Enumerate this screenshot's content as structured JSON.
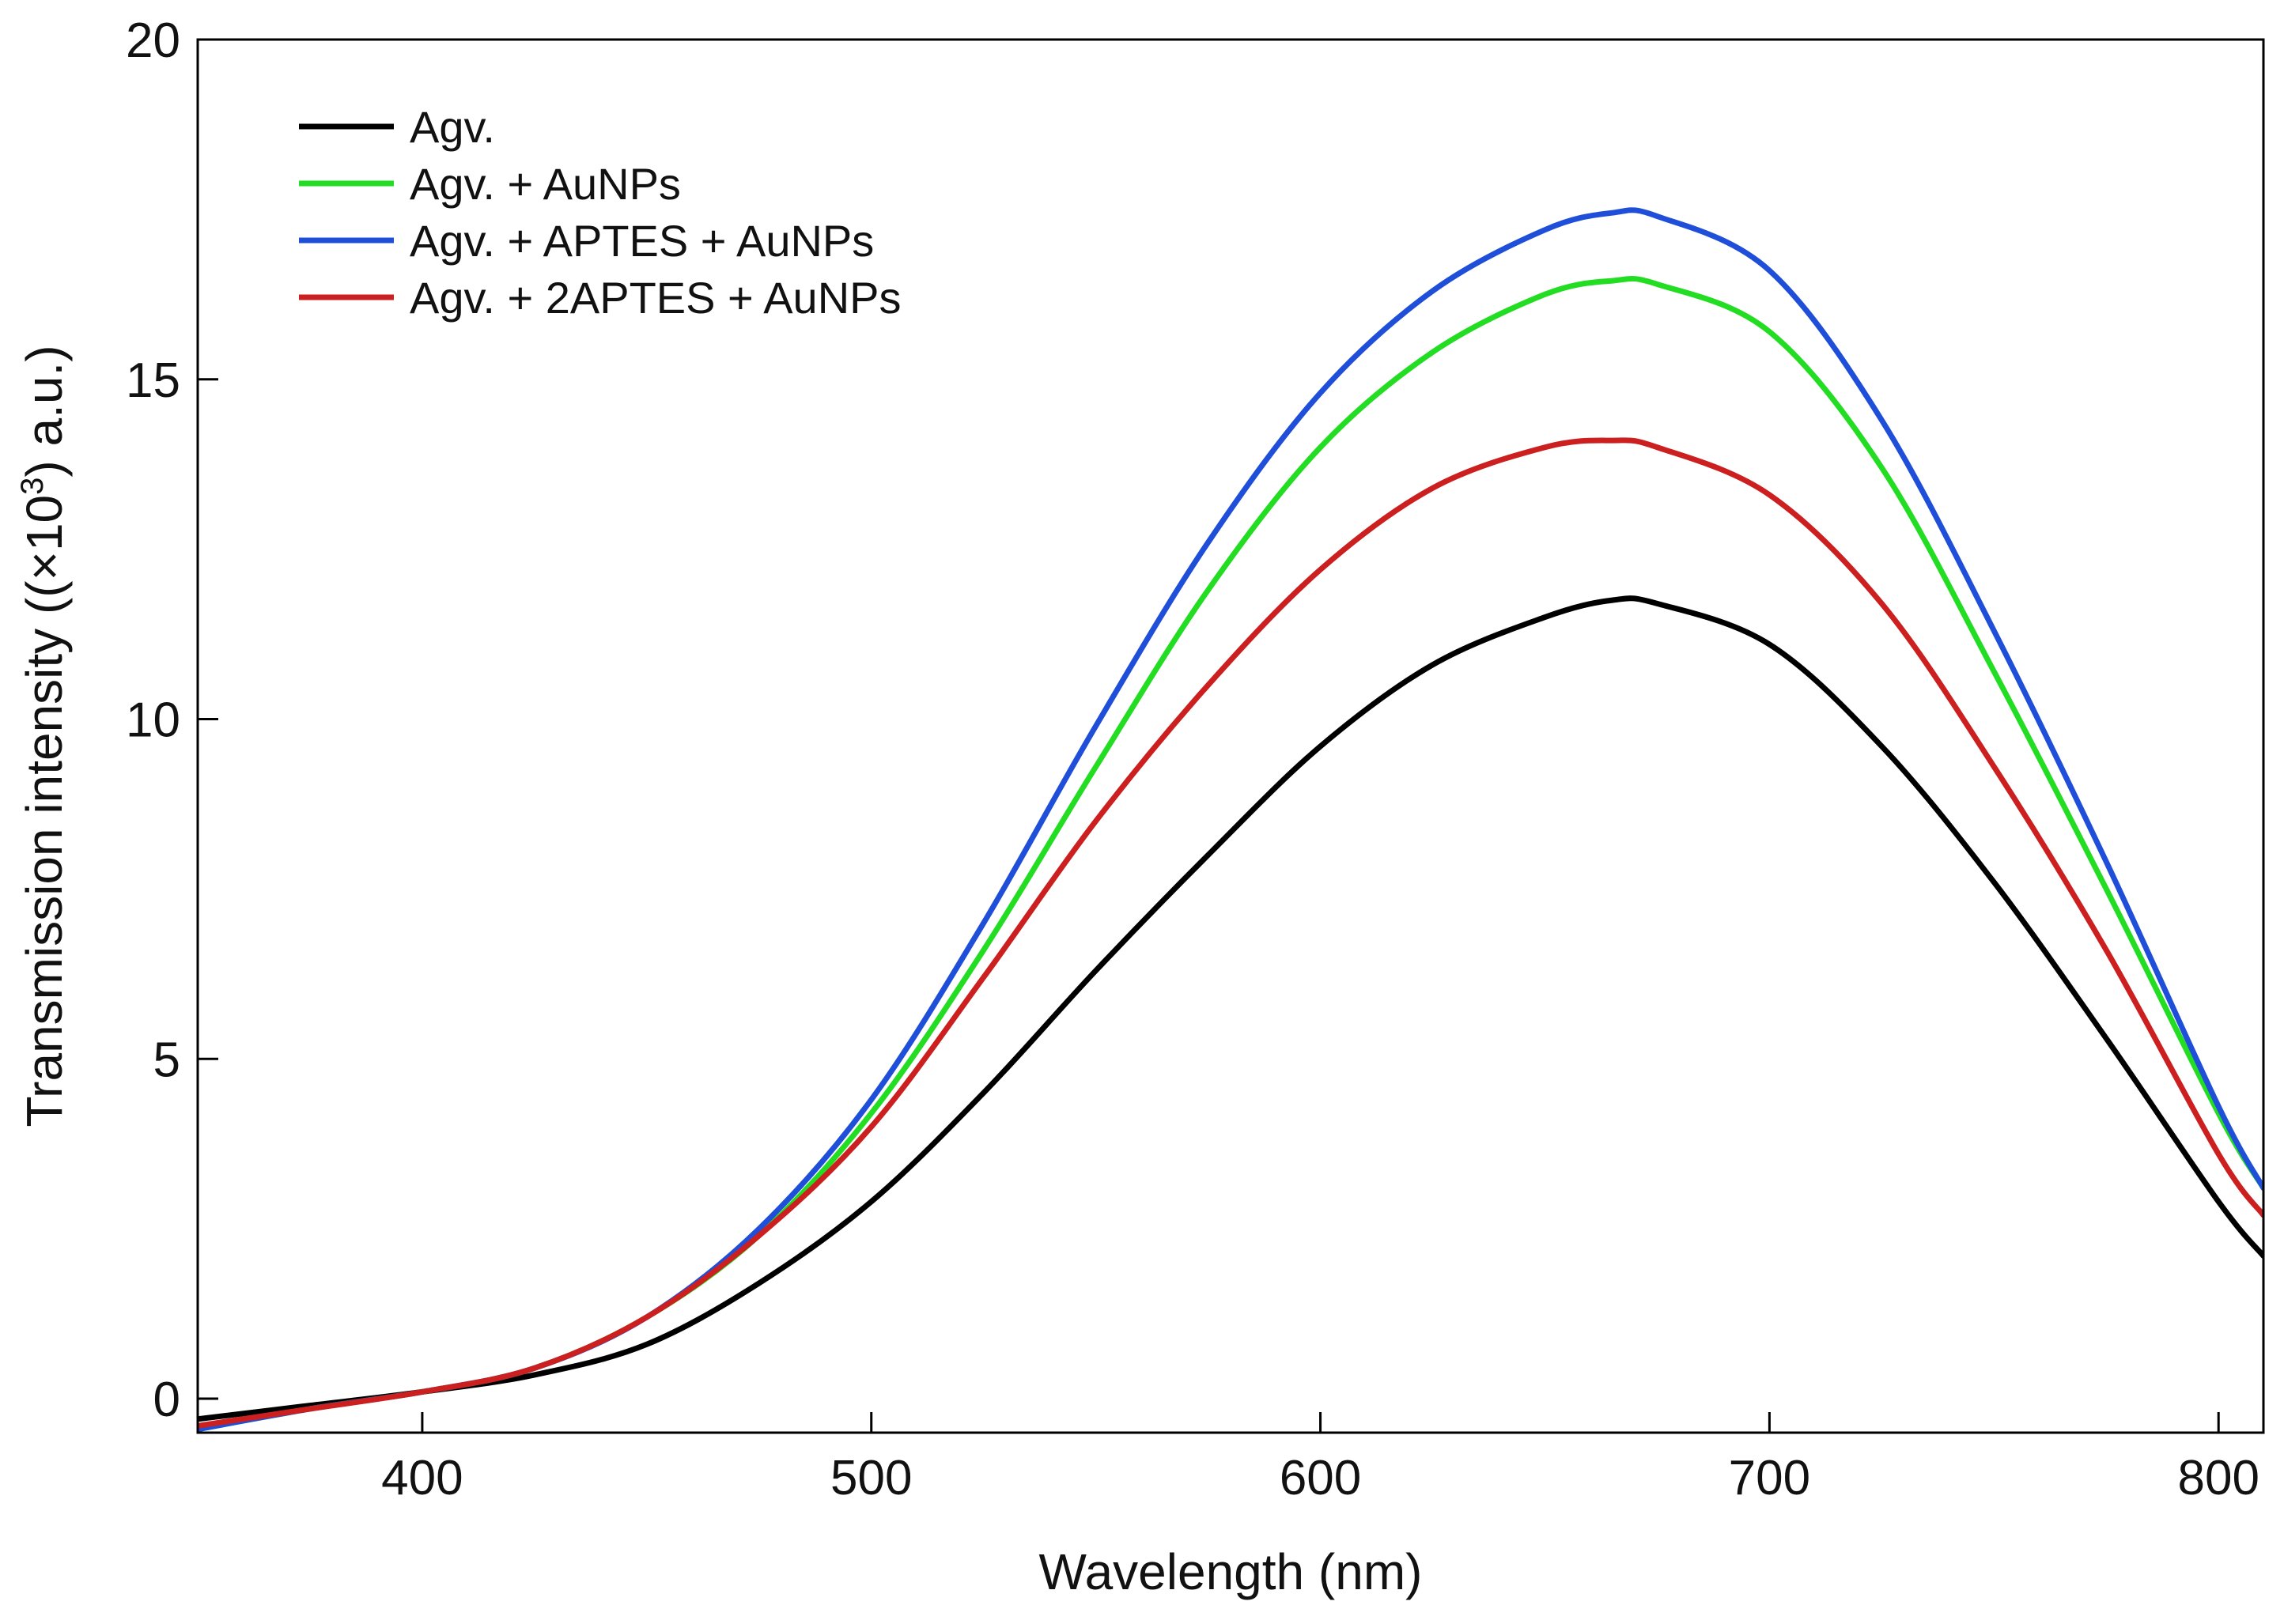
{
  "chart_data": {
    "type": "line",
    "title": "",
    "xlabel": "Wavelength (nm)",
    "ylabel": {
      "prefix": "Transmission intensity ((×10",
      "superscript": "3",
      "suffix": ") a.u.)"
    },
    "xlim": [
      350,
      810
    ],
    "ylim": [
      -0.5,
      20
    ],
    "x_ticks": [
      400,
      500,
      600,
      700,
      800
    ],
    "x_tick_labels": [
      "400",
      "500",
      "600",
      "700",
      "800"
    ],
    "y_ticks": [
      0,
      5,
      10,
      15,
      20
    ],
    "y_tick_labels": [
      "0",
      "5",
      "10",
      "15",
      "20"
    ],
    "grid": false,
    "legend_position": "top-left",
    "x": [
      350,
      375,
      400,
      425,
      450,
      475,
      500,
      525,
      550,
      575,
      600,
      625,
      650,
      665,
      675,
      700,
      725,
      750,
      775,
      800,
      810
    ],
    "series": [
      {
        "name": "Agv.",
        "color": "#000000",
        "values": [
          -0.3,
          -0.1,
          0.1,
          0.35,
          0.8,
          1.7,
          2.9,
          4.5,
          6.3,
          8.0,
          9.6,
          10.8,
          11.5,
          11.75,
          11.7,
          11.1,
          9.6,
          7.6,
          5.3,
          2.9,
          2.1
        ]
      },
      {
        "name": "Agv. + AuNPs",
        "color": "#22dd22",
        "values": [
          -0.45,
          -0.15,
          0.1,
          0.45,
          1.2,
          2.4,
          4.2,
          6.6,
          9.3,
          11.9,
          14.0,
          15.4,
          16.25,
          16.45,
          16.4,
          15.7,
          13.7,
          10.7,
          7.5,
          4.2,
          3.1
        ]
      },
      {
        "name": "Agv. + APTES + AuNPs",
        "color": "#1f4fd8",
        "values": [
          -0.45,
          -0.15,
          0.1,
          0.45,
          1.2,
          2.5,
          4.4,
          7.0,
          9.9,
          12.6,
          14.8,
          16.3,
          17.2,
          17.45,
          17.4,
          16.6,
          14.4,
          11.3,
          7.9,
          4.3,
          3.1
        ]
      },
      {
        "name": "Agv. + 2APTES + AuNPs",
        "color": "#cc1f1f",
        "values": [
          -0.4,
          -0.15,
          0.1,
          0.45,
          1.2,
          2.4,
          4.0,
          6.2,
          8.5,
          10.5,
          12.2,
          13.4,
          14.0,
          14.1,
          14.0,
          13.3,
          11.7,
          9.3,
          6.6,
          3.6,
          2.7
        ]
      }
    ]
  }
}
